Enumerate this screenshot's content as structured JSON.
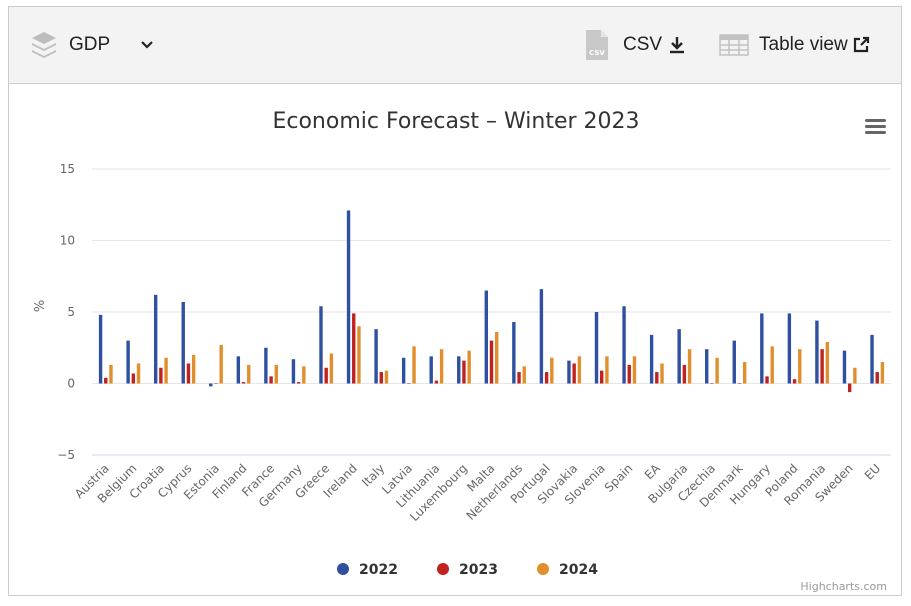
{
  "toolbar": {
    "dropdown_label": "GDP",
    "csv_label": "CSV",
    "table_view_label": "Table view",
    "csv_badge": "CSV"
  },
  "credits": "Highcharts.com",
  "colors": {
    "2022": "#2f4fa0",
    "2023": "#c0221f",
    "2024": "#e08f2c"
  },
  "chart_data": {
    "type": "bar",
    "title": "Economic Forecast – Winter 2023",
    "ylabel": "%",
    "xlabel": "",
    "ylim": [
      -5,
      15
    ],
    "yticks": [
      -5,
      0,
      5,
      10,
      15
    ],
    "legend_position": "bottom",
    "grid": true,
    "categories": [
      "Austria",
      "Belgium",
      "Croatia",
      "Cyprus",
      "Estonia",
      "Finland",
      "France",
      "Germany",
      "Greece",
      "Ireland",
      "Italy",
      "Latvia",
      "Lithuania",
      "Luxembourg",
      "Malta",
      "Netherlands",
      "Portugal",
      "Slovakia",
      "Slovenia",
      "Spain",
      "EA",
      "Bulgaria",
      "Czechia",
      "Denmark",
      "Hungary",
      "Poland",
      "Romania",
      "Sweden",
      "EU"
    ],
    "series": [
      {
        "name": "2022",
        "values": [
          4.8,
          3.0,
          6.2,
          5.7,
          -0.2,
          1.9,
          2.5,
          1.7,
          5.4,
          12.1,
          3.8,
          1.8,
          1.9,
          1.9,
          6.5,
          4.3,
          6.6,
          1.6,
          5.0,
          5.4,
          3.4,
          3.8,
          2.4,
          3.0,
          4.9,
          4.9,
          4.4,
          2.3,
          3.4
        ]
      },
      {
        "name": "2023",
        "values": [
          0.4,
          0.7,
          1.1,
          1.4,
          0.0,
          0.1,
          0.5,
          0.1,
          1.1,
          4.9,
          0.8,
          0.0,
          0.2,
          1.6,
          3.0,
          0.8,
          0.8,
          1.4,
          0.9,
          1.3,
          0.8,
          1.3,
          0.0,
          0.0,
          0.5,
          0.3,
          2.4,
          -0.6,
          0.8
        ]
      },
      {
        "name": "2024",
        "values": [
          1.3,
          1.4,
          1.8,
          2.0,
          2.7,
          1.3,
          1.3,
          1.2,
          2.1,
          4.0,
          0.9,
          2.6,
          2.4,
          2.3,
          3.6,
          1.2,
          1.8,
          1.9,
          1.9,
          1.9,
          1.4,
          2.4,
          1.8,
          1.5,
          2.6,
          2.4,
          2.9,
          1.1,
          1.5
        ]
      }
    ]
  }
}
